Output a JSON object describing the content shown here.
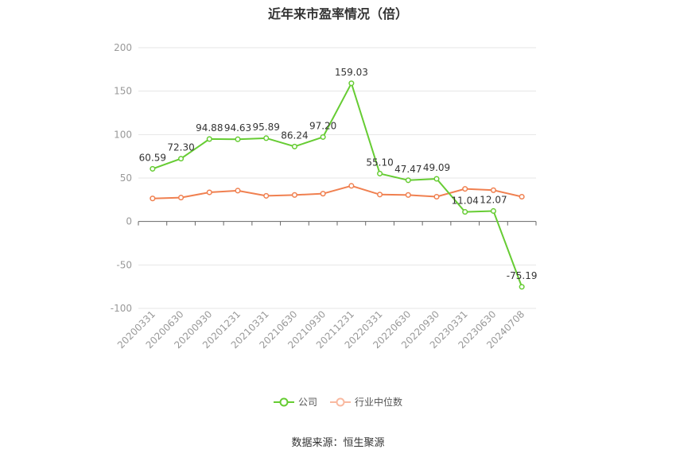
{
  "chart_data": {
    "type": "line",
    "title": "近年来市盈率情况（倍）",
    "categories": [
      "20200331",
      "20200630",
      "20200930",
      "20201231",
      "20210331",
      "20210630",
      "20210930",
      "20211231",
      "20220331",
      "20220630",
      "20220930",
      "20230331",
      "20230630",
      "20240708"
    ],
    "series": [
      {
        "name": "公司",
        "color": "#66cc33",
        "values": [
          60.59,
          72.3,
          94.88,
          94.63,
          95.89,
          86.24,
          97.2,
          159.03,
          55.1,
          47.47,
          49.09,
          11.04,
          12.07,
          -75.19
        ],
        "labels": [
          "60.59",
          "72.30",
          "94.88",
          "94.63",
          "95.89",
          "86.24",
          "97.20",
          "159.03",
          "55.10",
          "47.47",
          "49.09",
          "11.04",
          "12.07",
          "-75.19"
        ]
      },
      {
        "name": "行业中位数",
        "color": "#f08050",
        "values": [
          26.5,
          27.5,
          33.5,
          35.5,
          29.5,
          30.5,
          32.0,
          41.0,
          31.0,
          30.5,
          28.5,
          37.5,
          36.0,
          28.5
        ]
      }
    ],
    "ylim": [
      -100,
      200
    ],
    "yticks": [
      "200",
      "150",
      "100",
      "50",
      "0",
      "-50",
      "-100"
    ],
    "grid": true,
    "legend_position": "bottom-center"
  },
  "source": "数据来源：恒生聚源"
}
